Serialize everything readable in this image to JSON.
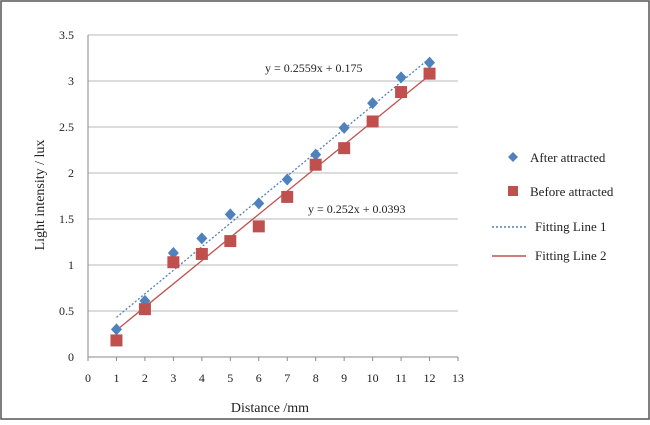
{
  "chart_data": {
    "type": "scatter",
    "xlabel": "Distance /mm",
    "ylabel": "Light intensity / lux",
    "xlim": [
      0,
      13
    ],
    "ylim": [
      0,
      3.5
    ],
    "xticks": [
      "0",
      "1",
      "2",
      "3",
      "4",
      "5",
      "6",
      "7",
      "8",
      "9",
      "10",
      "11",
      "12",
      "13"
    ],
    "yticks": [
      "0",
      "0.5",
      "1",
      "1.5",
      "2",
      "2.5",
      "3",
      "3.5"
    ],
    "grid": "horizontal",
    "legend_position": "right",
    "series": [
      {
        "name": "After attracted",
        "marker": "diamond",
        "color": "#4f81bd",
        "x": [
          1,
          2,
          3,
          4,
          5,
          6,
          7,
          8,
          9,
          10,
          11,
          12
        ],
        "y": [
          0.3,
          0.61,
          1.13,
          1.29,
          1.55,
          1.67,
          1.93,
          2.2,
          2.49,
          2.76,
          3.04,
          3.2
        ]
      },
      {
        "name": "Before attracted",
        "marker": "square",
        "color": "#c0504d",
        "x": [
          1,
          2,
          3,
          4,
          5,
          6,
          7,
          8,
          9,
          10,
          11,
          12
        ],
        "y": [
          0.18,
          0.52,
          1.03,
          1.12,
          1.26,
          1.42,
          1.74,
          2.09,
          2.27,
          2.56,
          2.88,
          3.08
        ]
      }
    ],
    "fits": [
      {
        "name": "Fitting Line 1",
        "slope": 0.2559,
        "intercept": 0.175,
        "equation": "y = 0.2559x + 0.175",
        "color": "#4f81bd",
        "style": "dotted"
      },
      {
        "name": "Fitting Line 2",
        "slope": 0.252,
        "intercept": 0.0393,
        "equation": "y = 0.252x + 0.0393",
        "color": "#c0504d",
        "style": "solid"
      }
    ]
  }
}
